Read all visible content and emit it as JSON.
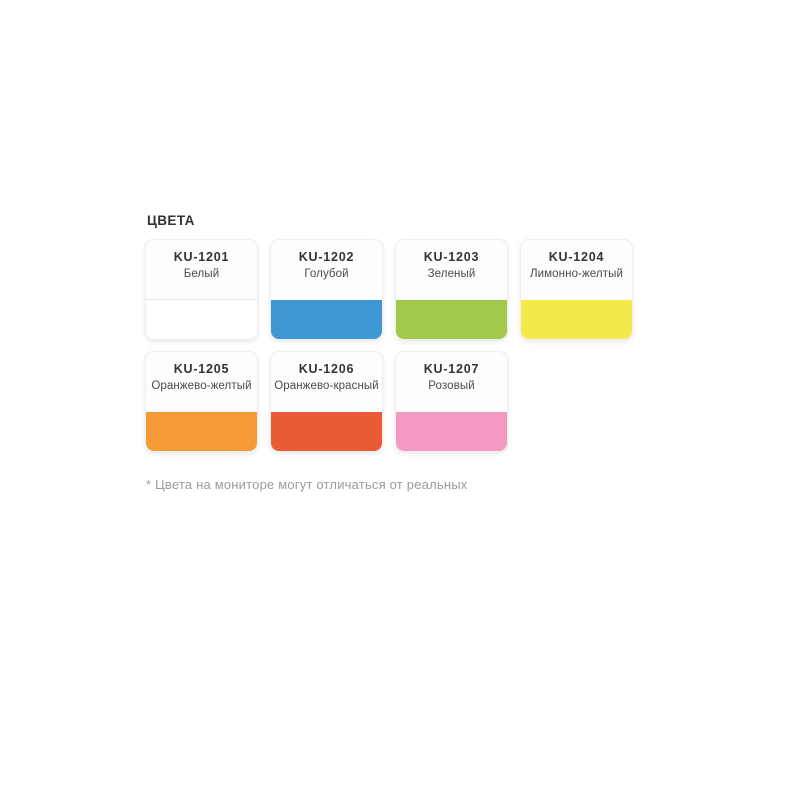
{
  "section": {
    "heading": "ЦВЕТА",
    "footnote": "* Цвета на мониторе могут отличаться от реальных"
  },
  "palette": {
    "cards": [
      {
        "code": "KU-1201",
        "name": "Белый",
        "color": "#ffffff",
        "is_white": true
      },
      {
        "code": "KU-1202",
        "name": "Голубой",
        "color": "#3f97d3"
      },
      {
        "code": "KU-1203",
        "name": "Зеленый",
        "color": "#a4c84b"
      },
      {
        "code": "KU-1204",
        "name": "Лимонно-желтый",
        "color": "#f4e94a"
      },
      {
        "code": "KU-1205",
        "name": "Оранжево-желтый",
        "color": "#f49b37"
      },
      {
        "code": "KU-1206",
        "name": "Оранжево-красный",
        "color": "#ea5a35"
      },
      {
        "code": "KU-1207",
        "name": "Розовый",
        "color": "#f49ac0"
      }
    ]
  }
}
